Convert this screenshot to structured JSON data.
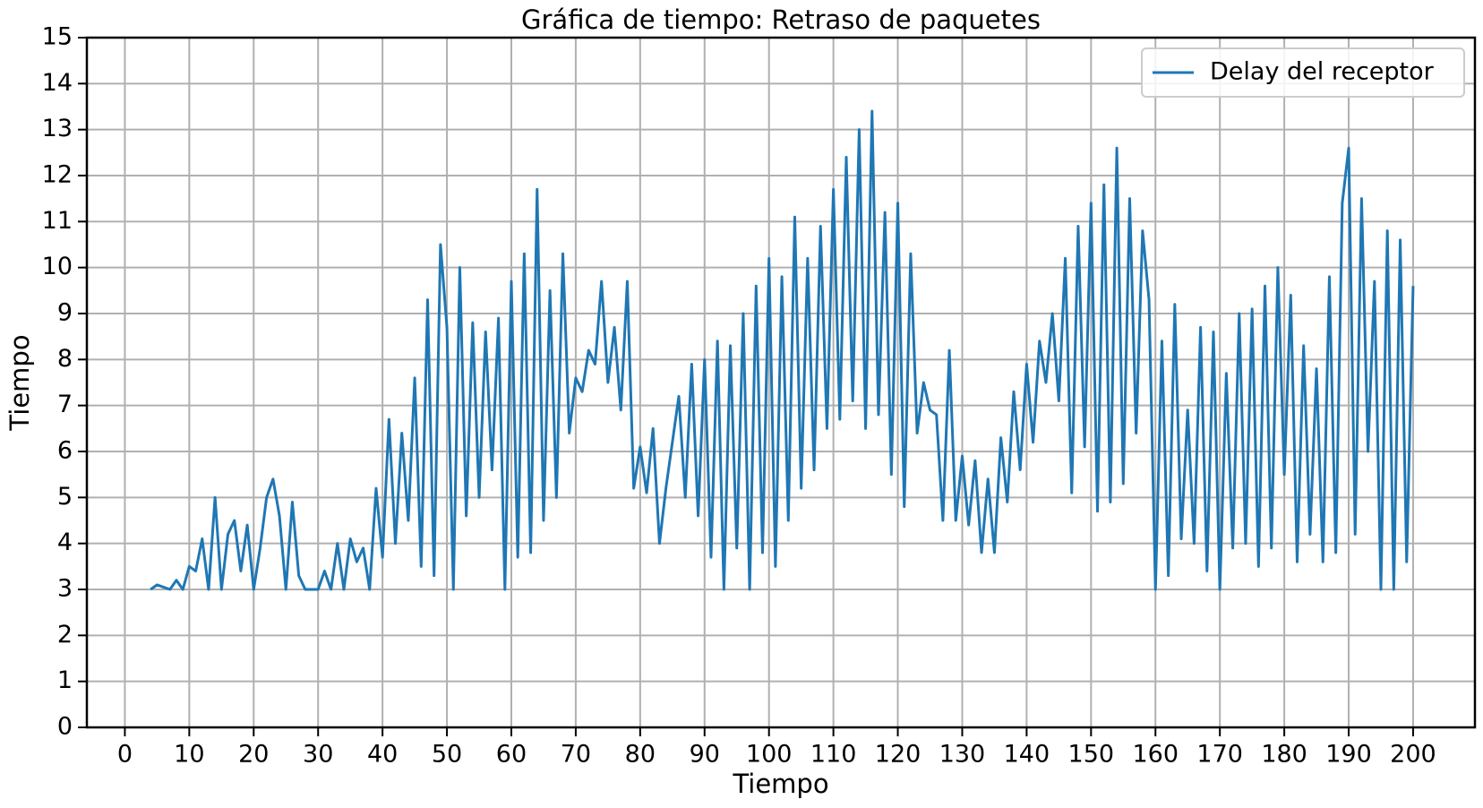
{
  "chart_data": {
    "type": "line",
    "title": "Gráfica de tiempo: Retraso de paquetes",
    "xlabel": "Tiempo",
    "ylabel": "Tiempo",
    "x": [
      4,
      5,
      6,
      7,
      8,
      9,
      10,
      11,
      12,
      13,
      14,
      15,
      16,
      17,
      18,
      19,
      20,
      21,
      22,
      23,
      24,
      25,
      26,
      27,
      28,
      29,
      30,
      31,
      32,
      33,
      34,
      35,
      36,
      37,
      38,
      39,
      40,
      41,
      42,
      43,
      44,
      45,
      46,
      47,
      48,
      49,
      50,
      51,
      52,
      53,
      54,
      55,
      56,
      57,
      58,
      59,
      60,
      61,
      62,
      63,
      64,
      65,
      66,
      67,
      68,
      69,
      70,
      71,
      72,
      73,
      74,
      75,
      76,
      77,
      78,
      79,
      80,
      81,
      82,
      83,
      84,
      85,
      86,
      87,
      88,
      89,
      90,
      91,
      92,
      93,
      94,
      95,
      96,
      97,
      98,
      99,
      100,
      101,
      102,
      103,
      104,
      105,
      106,
      107,
      108,
      109,
      110,
      111,
      112,
      113,
      114,
      115,
      116,
      117,
      118,
      119,
      120,
      121,
      122,
      123,
      124,
      125,
      126,
      127,
      128,
      129,
      130,
      131,
      132,
      133,
      134,
      135,
      136,
      137,
      138,
      139,
      140,
      141,
      142,
      143,
      144,
      145,
      146,
      147,
      148,
      149,
      150,
      151,
      152,
      153,
      154,
      155,
      156,
      157,
      158,
      159,
      160,
      161,
      162,
      163,
      164,
      165,
      166,
      167,
      168,
      169,
      170,
      171,
      172,
      173,
      174,
      175,
      176,
      177,
      178,
      179,
      180,
      181,
      182,
      183,
      184,
      185,
      186,
      187,
      188,
      189,
      190,
      191,
      192,
      193,
      194,
      195,
      196,
      197,
      198,
      199,
      200
    ],
    "series": [
      {
        "name": "Delay del receptor",
        "color": "#1f77b4",
        "values": [
          3.0,
          3.1,
          3.05,
          3.0,
          3.2,
          3.0,
          3.5,
          3.4,
          4.1,
          3.0,
          5.0,
          3.0,
          4.2,
          4.5,
          3.4,
          4.4,
          3.0,
          3.9,
          5.0,
          5.4,
          4.6,
          3.0,
          4.9,
          3.3,
          3.0,
          3.0,
          3.0,
          3.4,
          3.0,
          4.0,
          3.0,
          4.1,
          3.6,
          3.9,
          3.0,
          5.2,
          3.7,
          6.7,
          4.0,
          6.4,
          4.5,
          7.6,
          3.5,
          9.3,
          3.3,
          10.5,
          8.7,
          3.0,
          10.0,
          4.6,
          8.8,
          5.0,
          8.6,
          5.6,
          8.9,
          3.0,
          9.7,
          3.7,
          10.3,
          3.8,
          11.7,
          4.5,
          9.5,
          5.0,
          10.3,
          6.4,
          7.6,
          7.3,
          8.2,
          7.9,
          9.7,
          7.5,
          8.7,
          6.9,
          9.7,
          5.2,
          6.1,
          5.1,
          6.5,
          4.0,
          5.2,
          6.2,
          7.2,
          5.0,
          7.9,
          4.6,
          8.0,
          3.7,
          8.4,
          3.0,
          8.3,
          3.9,
          9.0,
          3.0,
          9.6,
          3.8,
          10.2,
          3.5,
          9.8,
          4.5,
          11.1,
          5.2,
          10.2,
          5.6,
          10.9,
          6.5,
          11.7,
          6.7,
          12.4,
          7.1,
          13.0,
          6.5,
          13.4,
          6.8,
          11.2,
          5.5,
          11.4,
          4.8,
          10.3,
          6.4,
          7.5,
          6.9,
          6.8,
          4.5,
          8.2,
          4.5,
          5.9,
          4.4,
          5.8,
          3.8,
          5.4,
          3.8,
          6.3,
          4.9,
          7.3,
          5.6,
          7.9,
          6.2,
          8.4,
          7.5,
          9.0,
          7.1,
          10.2,
          5.1,
          10.9,
          6.1,
          11.4,
          4.7,
          11.8,
          4.9,
          12.6,
          5.3,
          11.5,
          6.4,
          10.8,
          9.3,
          3.0,
          8.4,
          3.3,
          9.2,
          4.1,
          6.9,
          4.0,
          8.7,
          3.4,
          8.6,
          3.0,
          7.7,
          3.9,
          9.0,
          4.0,
          9.1,
          3.5,
          9.6,
          3.9,
          10.0,
          5.5,
          9.4,
          3.6,
          8.3,
          4.2,
          7.8,
          3.6,
          9.8,
          3.8,
          11.4,
          12.6,
          4.2,
          11.5,
          6.0,
          9.7,
          3.0,
          10.8,
          3.0,
          10.6,
          3.6,
          9.6
        ]
      }
    ],
    "xlim": [
      -5.9,
      209.6
    ],
    "ylim": [
      0,
      15
    ],
    "xticks": [
      0,
      10,
      20,
      30,
      40,
      50,
      60,
      70,
      80,
      90,
      100,
      110,
      120,
      130,
      140,
      150,
      160,
      170,
      180,
      190,
      200
    ],
    "yticks": [
      0,
      1,
      2,
      3,
      4,
      5,
      6,
      7,
      8,
      9,
      10,
      11,
      12,
      13,
      14,
      15
    ],
    "grid": true,
    "legend": "upper right"
  }
}
